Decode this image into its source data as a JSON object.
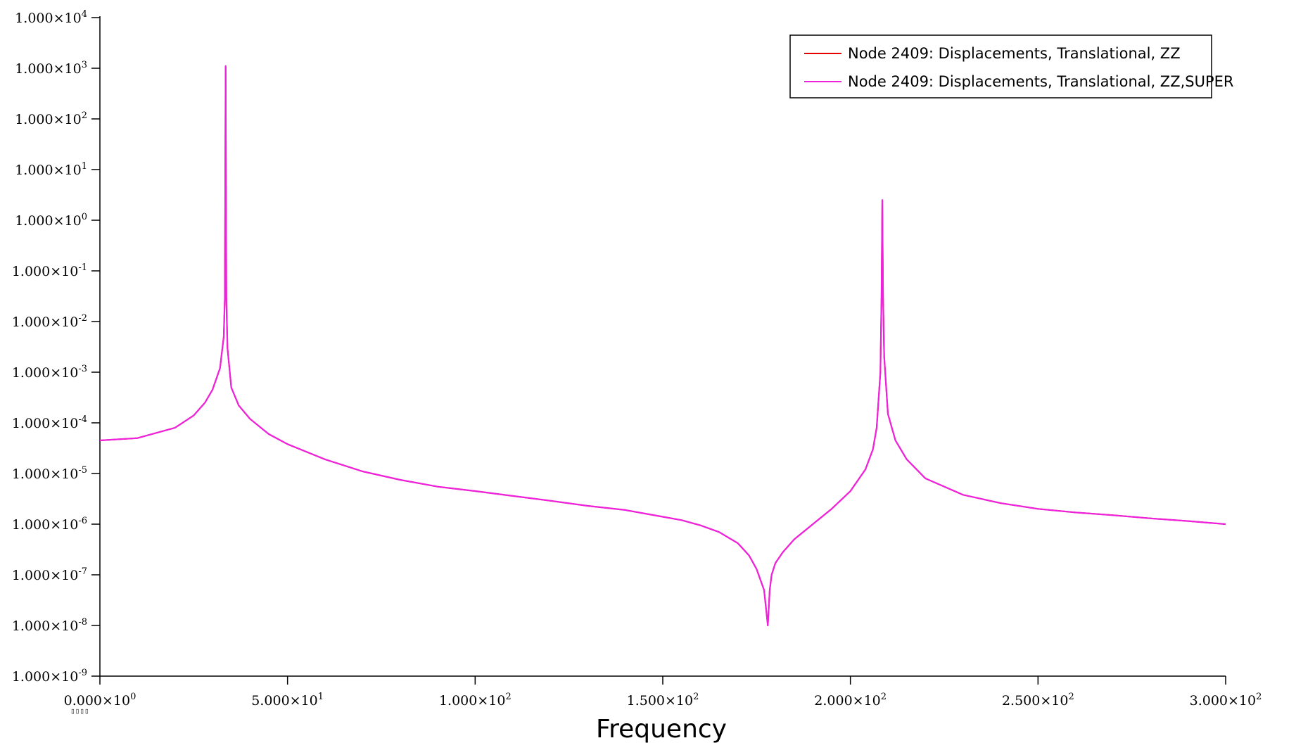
{
  "chart_data": {
    "type": "line",
    "title": "",
    "xlabel": "Frequency",
    "ylabel": "",
    "xlim": [
      0,
      300
    ],
    "ylim": [
      1e-09,
      10000.0
    ],
    "yscale": "log",
    "grid": false,
    "legend_position": "top-right",
    "x_ticks": [
      {
        "value": 0,
        "mant": "0.000",
        "exp": "0"
      },
      {
        "value": 50,
        "mant": "5.000",
        "exp": "1"
      },
      {
        "value": 100,
        "mant": "1.000",
        "exp": "2"
      },
      {
        "value": 150,
        "mant": "1.500",
        "exp": "2"
      },
      {
        "value": 200,
        "mant": "2.000",
        "exp": "2"
      },
      {
        "value": 250,
        "mant": "2.500",
        "exp": "2"
      },
      {
        "value": 300,
        "mant": "3.000",
        "exp": "2"
      }
    ],
    "y_ticks": [
      {
        "value": 10000.0,
        "mant": "1.000",
        "exp": "4"
      },
      {
        "value": 1000.0,
        "mant": "1.000",
        "exp": "3"
      },
      {
        "value": 100.0,
        "mant": "1.000",
        "exp": "2"
      },
      {
        "value": 10.0,
        "mant": "1.000",
        "exp": "1"
      },
      {
        "value": 1.0,
        "mant": "1.000",
        "exp": "0"
      },
      {
        "value": 0.1,
        "mant": "1.000",
        "exp": "-1"
      },
      {
        "value": 0.01,
        "mant": "1.000",
        "exp": "-2"
      },
      {
        "value": 0.001,
        "mant": "1.000",
        "exp": "-3"
      },
      {
        "value": 0.0001,
        "mant": "1.000",
        "exp": "-4"
      },
      {
        "value": 1e-05,
        "mant": "1.000",
        "exp": "-5"
      },
      {
        "value": 1e-06,
        "mant": "1.000",
        "exp": "-6"
      },
      {
        "value": 1e-07,
        "mant": "1.000",
        "exp": "-7"
      },
      {
        "value": 1e-08,
        "mant": "1.000",
        "exp": "-8"
      },
      {
        "value": 1e-09,
        "mant": "1.000",
        "exp": "-9"
      }
    ],
    "series": [
      {
        "name": "Node 2409: Displacements, Translational, ZZ",
        "color": "#e60000",
        "x": [
          0,
          10,
          20,
          25,
          28,
          30,
          32,
          33,
          33.3,
          33.5,
          33.7,
          34,
          35,
          37,
          40,
          45,
          50,
          60,
          70,
          80,
          90,
          100,
          110,
          120,
          130,
          140,
          150,
          155,
          160,
          165,
          170,
          173,
          175,
          177,
          178,
          178.5,
          179,
          180,
          182,
          185,
          190,
          195,
          200,
          204,
          206,
          207,
          208,
          208.3,
          208.5,
          208.7,
          209,
          210,
          212,
          215,
          220,
          230,
          240,
          250,
          260,
          270,
          280,
          290,
          300
        ],
        "y": [
          4.5e-05,
          5e-05,
          8e-05,
          0.00014,
          0.00025,
          0.00045,
          0.0012,
          0.005,
          0.03,
          1100.0,
          0.03,
          0.003,
          0.0005,
          0.00022,
          0.00012,
          6e-05,
          3.8e-05,
          1.9e-05,
          1.1e-05,
          7.5e-06,
          5.5e-06,
          4.5e-06,
          3.6e-06,
          2.9e-06,
          2.3e-06,
          1.9e-06,
          1.4e-06,
          1.2e-06,
          9.5e-07,
          7e-07,
          4.2e-07,
          2.4e-07,
          1.3e-07,
          5e-08,
          1e-08,
          5e-08,
          1e-07,
          1.7e-07,
          2.8e-07,
          5e-07,
          1e-06,
          2e-06,
          4.5e-06,
          1.2e-05,
          3e-05,
          8e-05,
          0.001,
          0.03,
          2.5,
          0.03,
          0.002,
          0.00015,
          4.5e-05,
          1.9e-05,
          8e-06,
          3.8e-06,
          2.6e-06,
          2e-06,
          1.7e-06,
          1.5e-06,
          1.3e-06,
          1.15e-06,
          1e-06
        ]
      },
      {
        "name": "Node 2409: Displacements, Translational, ZZ,SUPER",
        "color": "#ee22dd",
        "x": [
          0,
          10,
          20,
          25,
          28,
          30,
          32,
          33,
          33.3,
          33.5,
          33.7,
          34,
          35,
          37,
          40,
          45,
          50,
          60,
          70,
          80,
          90,
          100,
          110,
          120,
          130,
          140,
          150,
          155,
          160,
          165,
          170,
          173,
          175,
          177,
          178,
          178.5,
          179,
          180,
          182,
          185,
          190,
          195,
          200,
          204,
          206,
          207,
          208,
          208.3,
          208.5,
          208.7,
          209,
          210,
          212,
          215,
          220,
          230,
          240,
          250,
          260,
          270,
          280,
          290,
          300
        ],
        "y": [
          4.5e-05,
          5e-05,
          8e-05,
          0.00014,
          0.00025,
          0.00045,
          0.0012,
          0.005,
          0.03,
          1100.0,
          0.03,
          0.003,
          0.0005,
          0.00022,
          0.00012,
          6e-05,
          3.8e-05,
          1.9e-05,
          1.1e-05,
          7.5e-06,
          5.5e-06,
          4.5e-06,
          3.6e-06,
          2.9e-06,
          2.3e-06,
          1.9e-06,
          1.4e-06,
          1.2e-06,
          9.5e-07,
          7e-07,
          4.2e-07,
          2.4e-07,
          1.3e-07,
          5e-08,
          1e-08,
          5e-08,
          1e-07,
          1.7e-07,
          2.8e-07,
          5e-07,
          1e-06,
          2e-06,
          4.5e-06,
          1.2e-05,
          3e-05,
          8e-05,
          0.001,
          0.03,
          2.5,
          0.03,
          0.002,
          0.00015,
          4.5e-05,
          1.9e-05,
          8e-06,
          3.8e-06,
          2.6e-06,
          2e-06,
          1.7e-06,
          1.5e-06,
          1.3e-06,
          1.15e-06,
          1e-06
        ]
      }
    ]
  },
  "artifact_text": "▯▯▯▯"
}
